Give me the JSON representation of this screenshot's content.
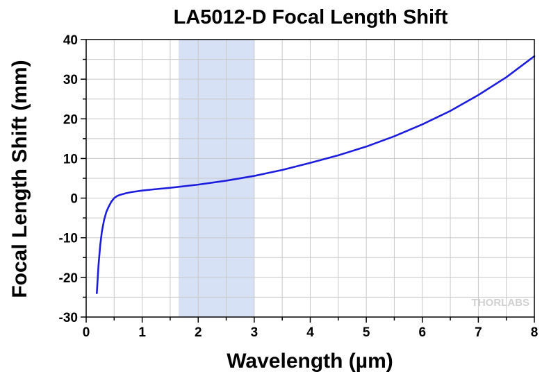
{
  "chart_data": {
    "type": "line",
    "title": "LA5012-D Focal Length Shift",
    "xlabel": "Wavelength (µm)",
    "ylabel": "Focal Length Shift (mm)",
    "xlim": [
      0,
      8
    ],
    "ylim": [
      -30,
      40
    ],
    "x_ticks": [
      "0",
      "1",
      "2",
      "3",
      "4",
      "5",
      "6",
      "7",
      "8"
    ],
    "y_ticks": [
      "40",
      "30",
      "20",
      "10",
      "0",
      "-10",
      "-20",
      "-30"
    ],
    "grid": true,
    "shaded_band": {
      "x_start": 1.65,
      "x_end": 3.0,
      "color": "#d6e1f6"
    },
    "series": [
      {
        "color": "#1c1cdc",
        "x": [
          0.19,
          0.22,
          0.25,
          0.28,
          0.32,
          0.36,
          0.4,
          0.45,
          0.5,
          0.55,
          0.6,
          0.7,
          0.8,
          1.0,
          1.2,
          1.5,
          2.0,
          2.5,
          3.0,
          3.5,
          4.0,
          4.5,
          5.0,
          5.5,
          6.0,
          6.5,
          7.0,
          7.5,
          8.0
        ],
        "y": [
          -24,
          -17,
          -12,
          -8.5,
          -5.5,
          -3.5,
          -2.2,
          -0.9,
          0,
          0.5,
          0.8,
          1.2,
          1.5,
          1.9,
          2.2,
          2.6,
          3.4,
          4.4,
          5.6,
          7.1,
          8.9,
          10.8,
          13.0,
          15.6,
          18.6,
          22.0,
          26.0,
          30.5,
          35.8
        ]
      }
    ]
  },
  "watermark": "THORLABS"
}
